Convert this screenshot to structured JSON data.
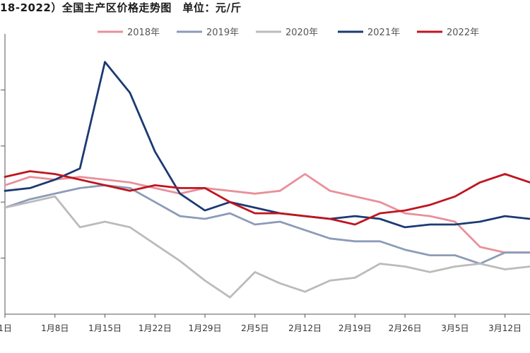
{
  "chart_data": {
    "type": "line",
    "title": "18-2022）全国主产区价格走势图　单位：元/斤",
    "x_ticks": [
      "1日",
      "1月8日",
      "1月15日",
      "1月22日",
      "1月29日",
      "2月5日",
      "2月12日",
      "2月19日",
      "2月26日",
      "3月5日",
      "3月12日"
    ],
    "x": [
      0,
      3.5,
      7,
      10.5,
      14,
      17.5,
      21,
      24.5,
      28,
      31.5,
      35,
      38.5,
      42,
      45.5,
      49,
      52.5,
      56,
      59.5,
      63,
      66.5,
      70,
      73.5
    ],
    "ylim": [
      0,
      10
    ],
    "grid": false,
    "legend_position": "top",
    "series": [
      {
        "name": "2018年",
        "color": "#e8909a",
        "values": [
          4.6,
          4.9,
          4.8,
          4.9,
          4.8,
          4.7,
          4.5,
          4.3,
          4.5,
          4.4,
          4.3,
          4.4,
          5.0,
          4.4,
          4.2,
          4.0,
          3.6,
          3.5,
          3.3,
          2.4,
          2.2,
          2.2
        ]
      },
      {
        "name": "2019年",
        "color": "#8c9bb8",
        "values": [
          3.8,
          4.1,
          4.3,
          4.5,
          4.6,
          4.5,
          4.0,
          3.5,
          3.4,
          3.6,
          3.2,
          3.3,
          3.0,
          2.7,
          2.6,
          2.6,
          2.3,
          2.1,
          2.1,
          1.8,
          2.2,
          2.2
        ]
      },
      {
        "name": "2020年",
        "color": "#bbbbbb",
        "values": [
          3.8,
          4.0,
          4.2,
          3.1,
          3.3,
          3.1,
          2.5,
          1.9,
          1.2,
          0.6,
          1.5,
          1.1,
          0.8,
          1.2,
          1.3,
          1.8,
          1.7,
          1.5,
          1.7,
          1.8,
          1.6,
          1.7
        ]
      },
      {
        "name": "2021年",
        "color": "#1b3a73",
        "values": [
          4.4,
          4.5,
          4.8,
          5.2,
          9.0,
          7.9,
          5.8,
          4.3,
          3.7,
          4.0,
          3.8,
          3.6,
          3.5,
          3.4,
          3.5,
          3.4,
          3.1,
          3.2,
          3.2,
          3.3,
          3.5,
          3.4
        ]
      },
      {
        "name": "2022年",
        "color": "#c0141e",
        "values": [
          4.9,
          5.1,
          5.0,
          4.8,
          4.6,
          4.4,
          4.6,
          4.5,
          4.5,
          4.0,
          3.6,
          3.6,
          3.5,
          3.4,
          3.2,
          3.6,
          3.7,
          3.9,
          4.2,
          4.7,
          5.0,
          4.7
        ]
      }
    ]
  }
}
